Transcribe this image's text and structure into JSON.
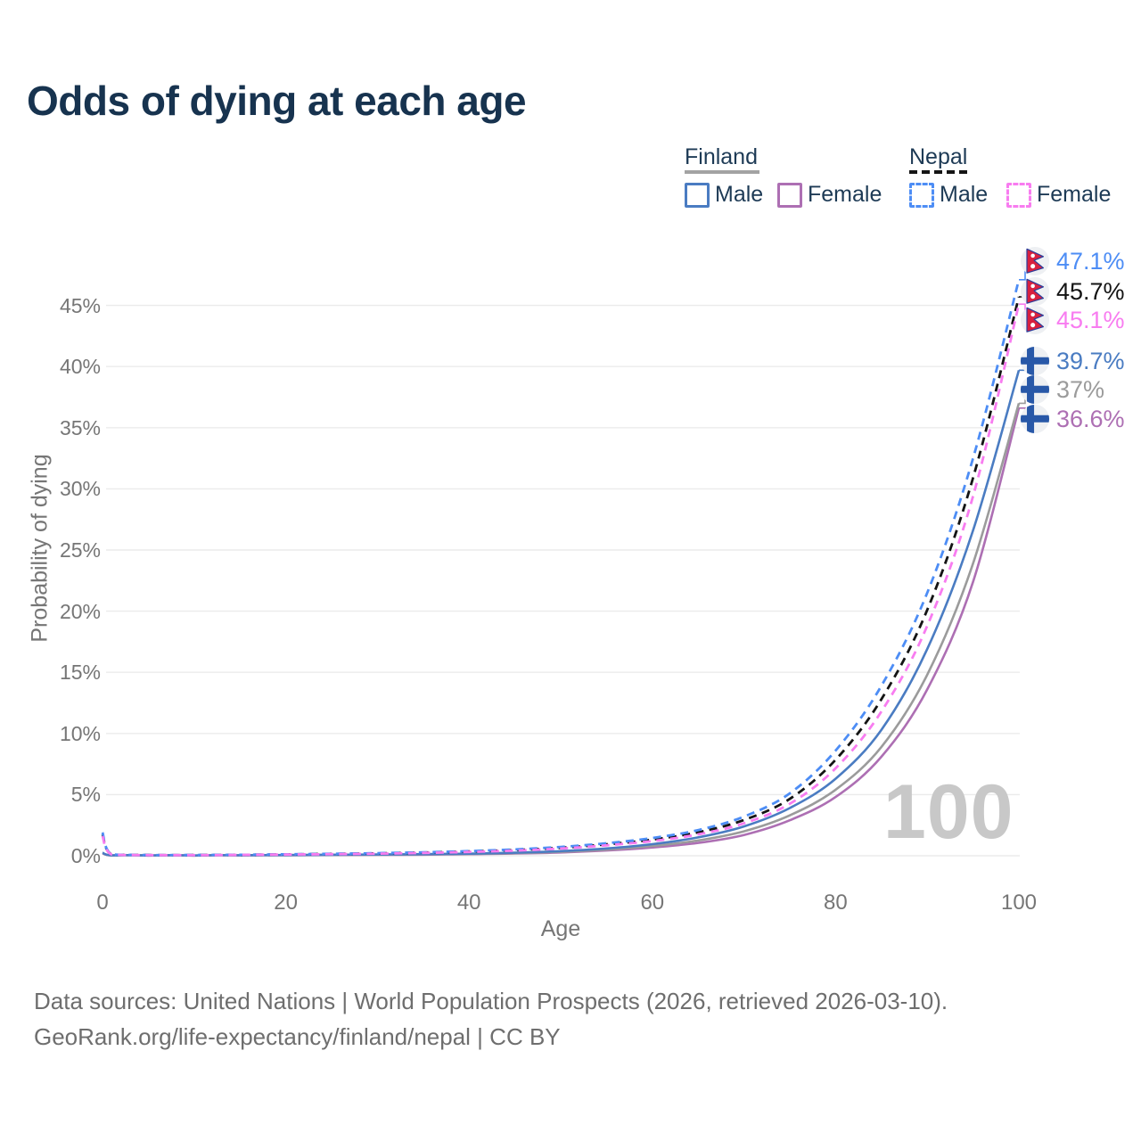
{
  "page": {
    "title": "Odds of dying at each age",
    "watermark": "100",
    "footer_line1": "Data sources: United Nations | World Population Prospects (2026, retrieved 2026-03-10).",
    "footer_line2": "GeoRank.org/life-expectancy/finland/nepal | CC BY"
  },
  "legend": {
    "groups": [
      {
        "label": "Finland",
        "line_style": "solid",
        "underline_color": "#a3a3a3",
        "items": [
          {
            "label": "Male",
            "color": "#4a7cc2",
            "dashed": false
          },
          {
            "label": "Female",
            "color": "#ad6fb3",
            "dashed": false
          }
        ]
      },
      {
        "label": "Nepal",
        "line_style": "dashed",
        "underline_color": "#151515",
        "items": [
          {
            "label": "Male",
            "color": "#4d8df5",
            "dashed": true
          },
          {
            "label": "Female",
            "color": "#f87cf0",
            "dashed": true
          }
        ]
      }
    ]
  },
  "chart_data": {
    "type": "line",
    "title": "Odds of dying at each age",
    "xlabel": "Age",
    "ylabel": "Probability of dying",
    "xlim": [
      0,
      100
    ],
    "ylim_pct": [
      0,
      48.6
    ],
    "x_ticks": [
      0,
      20,
      40,
      60,
      80,
      100
    ],
    "x_tick_labels": [
      "0",
      "20",
      "40",
      "60",
      "80",
      "100"
    ],
    "y_ticks_pct": [
      0,
      5,
      10,
      15,
      20,
      25,
      30,
      35,
      40,
      45
    ],
    "y_tick_labels": [
      "0%",
      "5%",
      "10%",
      "15%",
      "20%",
      "25%",
      "30%",
      "35%",
      "40%",
      "45%"
    ],
    "grid": "horizontal",
    "legend_position": "top-right",
    "series": [
      {
        "country": "Nepal",
        "group": "Male",
        "flag_icon": "nepal-flag-icon",
        "color": "#4d8df5",
        "dashed": true,
        "end_label": "47.1%",
        "end_value_pct": 47.1,
        "points": [
          [
            0,
            1.9
          ],
          [
            1,
            0.12
          ],
          [
            5,
            0.06
          ],
          [
            10,
            0.06
          ],
          [
            15,
            0.08
          ],
          [
            20,
            0.12
          ],
          [
            25,
            0.16
          ],
          [
            30,
            0.21
          ],
          [
            35,
            0.28
          ],
          [
            40,
            0.38
          ],
          [
            45,
            0.52
          ],
          [
            50,
            0.72
          ],
          [
            55,
            1.02
          ],
          [
            60,
            1.45
          ],
          [
            65,
            2.1
          ],
          [
            70,
            3.2
          ],
          [
            75,
            5.1
          ],
          [
            80,
            8.6
          ],
          [
            85,
            13.9
          ],
          [
            90,
            21.5
          ],
          [
            95,
            32.5
          ],
          [
            100,
            47.1
          ]
        ]
      },
      {
        "country": "Nepal",
        "group": "All",
        "flag_icon": "nepal-flag-icon",
        "color": "#141414",
        "dashed": true,
        "end_label": "45.7%",
        "end_value_pct": 45.7,
        "points": [
          [
            0,
            1.75
          ],
          [
            1,
            0.11
          ],
          [
            5,
            0.055
          ],
          [
            10,
            0.055
          ],
          [
            15,
            0.075
          ],
          [
            20,
            0.11
          ],
          [
            25,
            0.15
          ],
          [
            30,
            0.19
          ],
          [
            35,
            0.26
          ],
          [
            40,
            0.35
          ],
          [
            45,
            0.47
          ],
          [
            50,
            0.65
          ],
          [
            55,
            0.93
          ],
          [
            60,
            1.32
          ],
          [
            65,
            1.92
          ],
          [
            70,
            2.92
          ],
          [
            75,
            4.65
          ],
          [
            80,
            7.85
          ],
          [
            85,
            12.8
          ],
          [
            90,
            20.1
          ],
          [
            95,
            30.9
          ],
          [
            100,
            45.7
          ]
        ]
      },
      {
        "country": "Nepal",
        "group": "Female",
        "flag_icon": "nepal-flag-icon",
        "color": "#f87cf0",
        "dashed": true,
        "end_label": "45.1%",
        "end_value_pct": 45.1,
        "points": [
          [
            0,
            1.6
          ],
          [
            1,
            0.1
          ],
          [
            5,
            0.05
          ],
          [
            10,
            0.05
          ],
          [
            15,
            0.07
          ],
          [
            20,
            0.1
          ],
          [
            25,
            0.13
          ],
          [
            30,
            0.17
          ],
          [
            35,
            0.23
          ],
          [
            40,
            0.31
          ],
          [
            45,
            0.42
          ],
          [
            50,
            0.59
          ],
          [
            55,
            0.85
          ],
          [
            60,
            1.2
          ],
          [
            65,
            1.75
          ],
          [
            70,
            2.65
          ],
          [
            75,
            4.25
          ],
          [
            80,
            7.15
          ],
          [
            85,
            11.8
          ],
          [
            90,
            18.8
          ],
          [
            95,
            29.4
          ],
          [
            100,
            45.1
          ]
        ]
      },
      {
        "country": "Finland",
        "group": "Male",
        "flag_icon": "finland-flag-icon",
        "color": "#4a7cc2",
        "dashed": false,
        "end_label": "39.7%",
        "end_value_pct": 39.7,
        "points": [
          [
            0,
            0.25
          ],
          [
            1,
            0.03
          ],
          [
            5,
            0.02
          ],
          [
            10,
            0.02
          ],
          [
            15,
            0.04
          ],
          [
            20,
            0.06
          ],
          [
            25,
            0.08
          ],
          [
            30,
            0.1
          ],
          [
            35,
            0.13
          ],
          [
            40,
            0.17
          ],
          [
            45,
            0.25
          ],
          [
            50,
            0.38
          ],
          [
            55,
            0.6
          ],
          [
            60,
            0.95
          ],
          [
            65,
            1.5
          ],
          [
            70,
            2.4
          ],
          [
            75,
            3.9
          ],
          [
            80,
            6.3
          ],
          [
            85,
            10.3
          ],
          [
            90,
            16.9
          ],
          [
            95,
            26.6
          ],
          [
            100,
            39.7
          ]
        ]
      },
      {
        "country": "Finland",
        "group": "All",
        "flag_icon": "finland-flag-icon",
        "color": "#9b9b9b",
        "dashed": false,
        "end_label": "37%",
        "end_value_pct": 37.0,
        "points": [
          [
            0,
            0.22
          ],
          [
            1,
            0.027
          ],
          [
            5,
            0.018
          ],
          [
            10,
            0.018
          ],
          [
            15,
            0.035
          ],
          [
            20,
            0.05
          ],
          [
            25,
            0.065
          ],
          [
            30,
            0.085
          ],
          [
            35,
            0.11
          ],
          [
            40,
            0.15
          ],
          [
            45,
            0.21
          ],
          [
            50,
            0.32
          ],
          [
            55,
            0.5
          ],
          [
            60,
            0.8
          ],
          [
            65,
            1.25
          ],
          [
            70,
            2.0
          ],
          [
            75,
            3.3
          ],
          [
            80,
            5.4
          ],
          [
            85,
            8.9
          ],
          [
            90,
            14.8
          ],
          [
            95,
            23.9
          ],
          [
            100,
            37.0
          ]
        ]
      },
      {
        "country": "Finland",
        "group": "Female",
        "flag_icon": "finland-flag-icon",
        "color": "#ad6fb3",
        "dashed": false,
        "end_label": "36.6%",
        "end_value_pct": 36.6,
        "points": [
          [
            0,
            0.2
          ],
          [
            1,
            0.024
          ],
          [
            5,
            0.016
          ],
          [
            10,
            0.016
          ],
          [
            15,
            0.03
          ],
          [
            20,
            0.04
          ],
          [
            25,
            0.055
          ],
          [
            30,
            0.07
          ],
          [
            35,
            0.09
          ],
          [
            40,
            0.13
          ],
          [
            45,
            0.18
          ],
          [
            50,
            0.27
          ],
          [
            55,
            0.43
          ],
          [
            60,
            0.68
          ],
          [
            65,
            1.05
          ],
          [
            70,
            1.7
          ],
          [
            75,
            2.9
          ],
          [
            80,
            4.8
          ],
          [
            85,
            8.1
          ],
          [
            90,
            13.6
          ],
          [
            95,
            22.4
          ],
          [
            100,
            36.6
          ]
        ]
      }
    ]
  }
}
